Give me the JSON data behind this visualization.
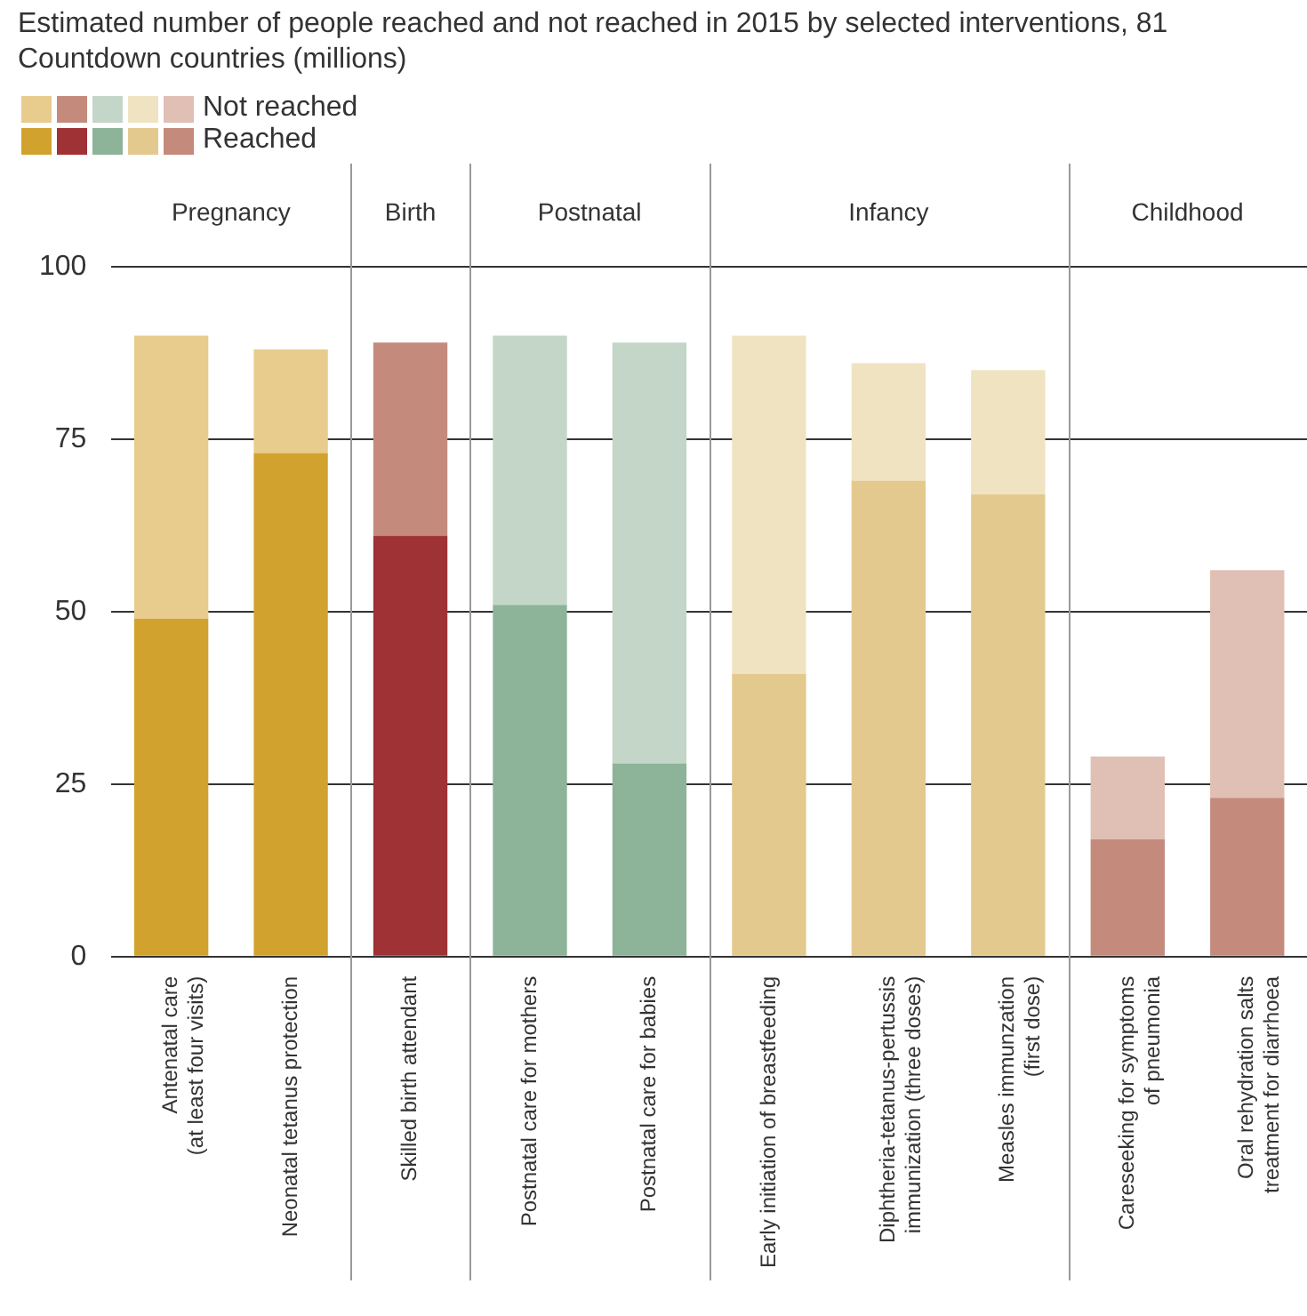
{
  "chart_data": {
    "type": "bar",
    "title": "Estimated number of people reached and not reached in 2015 by selected interventions, 81 Countdown countries (millions)",
    "categories": [
      "Antenatal care\n(at least four visits)",
      "Neonatal tetanus protection",
      "Skilled birth attendant",
      "Postnatal care for mothers",
      "Postnatal care for babies",
      "Early initiation of breastfeeding",
      "Diphtheria-tetanus-pertussis\nimmunization (three doses)",
      "Measles immunzation\n(first dose)",
      "Careseeking for symptoms\nof pneumonia",
      "Oral rehydration salts\ntreatment for diarrhoea"
    ],
    "series": [
      {
        "name": "Reached",
        "colors": [
          "#d2a22f",
          "#d2a22f",
          "#9e3234",
          "#8db398",
          "#8db398",
          "#e4c98e",
          "#e4c98e",
          "#e4c98e",
          "#c48a7c",
          "#c48a7c"
        ],
        "values": [
          49,
          73,
          61,
          51,
          28,
          41,
          69,
          67,
          17,
          23
        ]
      },
      {
        "name": "Not reached",
        "colors": [
          "#e8cc8e",
          "#e8cc8e",
          "#c48a7c",
          "#c3d6c7",
          "#c3d6c7",
          "#f0e3c2",
          "#f0e3c2",
          "#f0e3c2",
          "#e0bfb5",
          "#e0bfb5"
        ],
        "values": [
          41,
          15,
          28,
          39,
          61,
          49,
          17,
          18,
          12,
          33
        ]
      }
    ],
    "stacked": true,
    "ylim": [
      0,
      100
    ],
    "yticks": [
      0,
      25,
      50,
      75,
      100
    ],
    "grid": "y",
    "legend": "top left",
    "annotations": [
      "Pregnancy",
      "Birth",
      "Postnatal",
      "Infancy",
      "Childhood"
    ]
  }
}
